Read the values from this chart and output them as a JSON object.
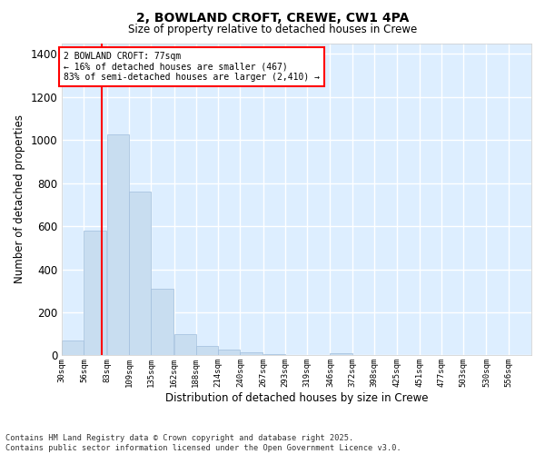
{
  "title_line1": "2, BOWLAND CROFT, CREWE, CW1 4PA",
  "title_line2": "Size of property relative to detached houses in Crewe",
  "xlabel": "Distribution of detached houses by size in Crewe",
  "ylabel": "Number of detached properties",
  "bar_color": "#c8ddf0",
  "bar_edgecolor": "#a0bedd",
  "background_color": "#ddeeff",
  "grid_color": "#ffffff",
  "red_line_x": 77,
  "annotation_title": "2 BOWLAND CROFT: 77sqm",
  "annotation_line2": "← 16% of detached houses are smaller (467)",
  "annotation_line3": "83% of semi-detached houses are larger (2,410) →",
  "categories": [
    "30sqm",
    "56sqm",
    "83sqm",
    "109sqm",
    "135sqm",
    "162sqm",
    "188sqm",
    "214sqm",
    "240sqm",
    "267sqm",
    "293sqm",
    "319sqm",
    "346sqm",
    "372sqm",
    "398sqm",
    "425sqm",
    "451sqm",
    "477sqm",
    "503sqm",
    "530sqm",
    "556sqm"
  ],
  "bin_starts": [
    30,
    56,
    83,
    109,
    135,
    162,
    188,
    214,
    240,
    267,
    293,
    319,
    346,
    372,
    398,
    425,
    451,
    477,
    503,
    530
  ],
  "bin_width": 26,
  "values": [
    70,
    580,
    1025,
    760,
    310,
    100,
    42,
    25,
    14,
    8,
    0,
    0,
    12,
    0,
    0,
    0,
    0,
    0,
    0,
    0
  ],
  "ylim": [
    0,
    1450
  ],
  "yticks": [
    0,
    200,
    400,
    600,
    800,
    1000,
    1200,
    1400
  ],
  "xlim_min": 30,
  "xlim_max": 583,
  "footnote1": "Contains HM Land Registry data © Crown copyright and database right 2025.",
  "footnote2": "Contains public sector information licensed under the Open Government Licence v3.0."
}
